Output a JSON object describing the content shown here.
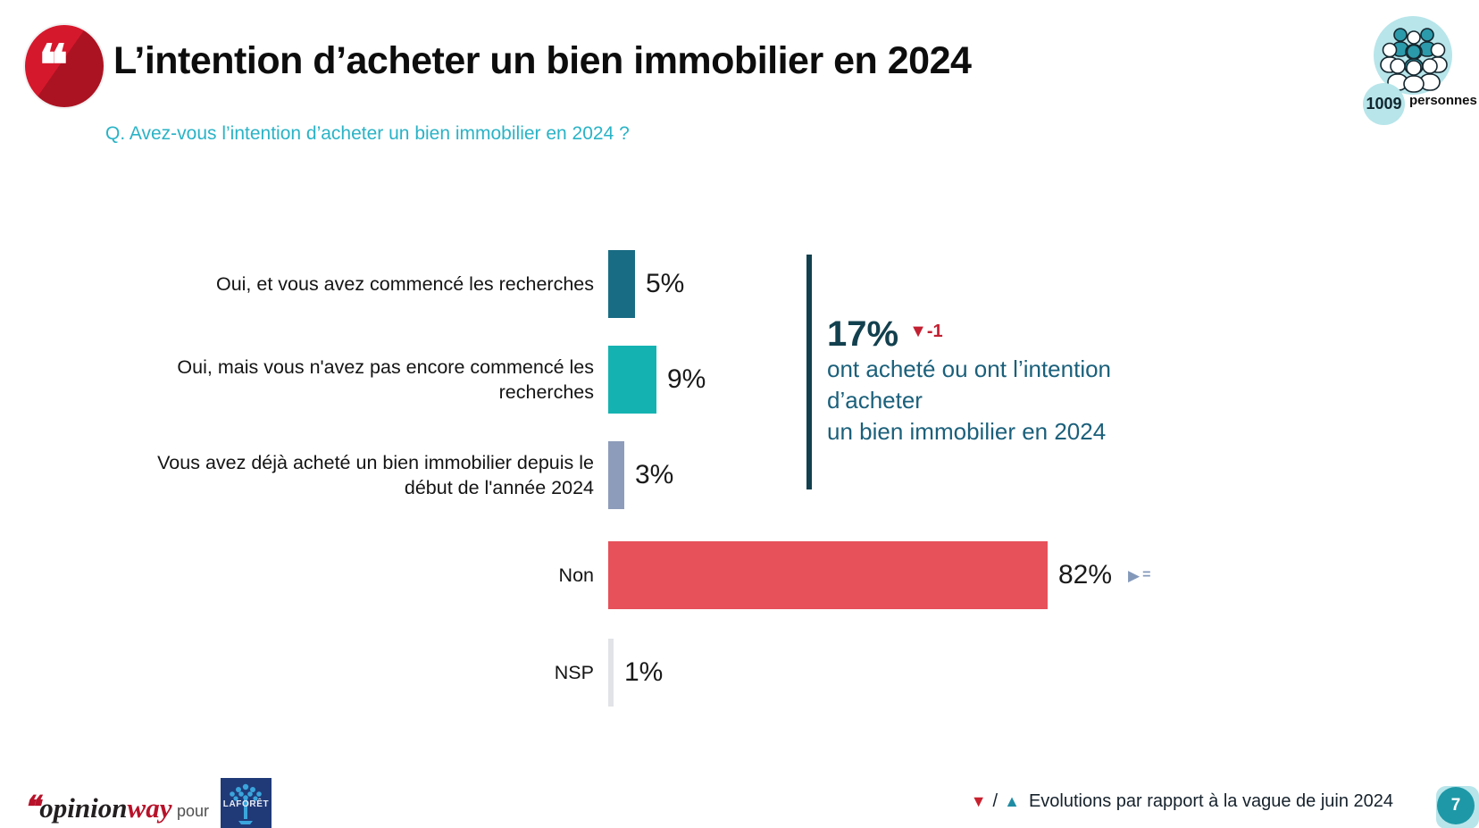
{
  "header": {
    "quote_glyph": "❝",
    "title": "L’intention d’acheter un bien immobilier en 2024",
    "sample": {
      "count": "1009",
      "label": "personnes"
    }
  },
  "question": "Q. Avez-vous l’intention d’acheter un bien immobilier en 2024 ?",
  "chart_data": {
    "type": "bar",
    "orientation": "horizontal",
    "title": "L’intention d’acheter un bien immobilier en 2024",
    "categories": [
      "Oui, et vous avez commencé les recherches",
      "Oui, mais vous n'avez pas encore commencé les recherches",
      "Vous avez déjà acheté un bien immobilier depuis le début de l'année 2024",
      "Non",
      "NSP"
    ],
    "values": [
      5,
      9,
      3,
      82,
      1
    ],
    "value_labels": [
      "5%",
      "9%",
      "3%",
      "82%",
      "1%"
    ],
    "bar_colors": [
      "#186c84",
      "#14b3b1",
      "#8d9cba",
      "#e6515a",
      "#e2e3e7"
    ],
    "xlim": [
      0,
      100
    ],
    "grid": false,
    "legend_position": "none",
    "non_evolution": {
      "triangle": "▶",
      "equals": "=",
      "meaning": "stable vs previous wave"
    }
  },
  "highlight": {
    "value": "17%",
    "evolution": "▼-1",
    "lines": [
      "ont acheté ou ont l’intention",
      "d’acheter",
      "un bien immobilier en 2024"
    ],
    "accent_color": "#13404e",
    "text_color": "#1b607b",
    "evolution_color": "#c32032"
  },
  "footer": {
    "brand": {
      "quote": "❝",
      "part1": "opinion",
      "part2": "way"
    },
    "pour": "pour",
    "client_logo": "LAFORÊT",
    "legend": {
      "down": "▼",
      "slash": "/",
      "up": "▲",
      "text": "Evolutions par rapport à la vague de juin 2024"
    },
    "page": "7"
  }
}
